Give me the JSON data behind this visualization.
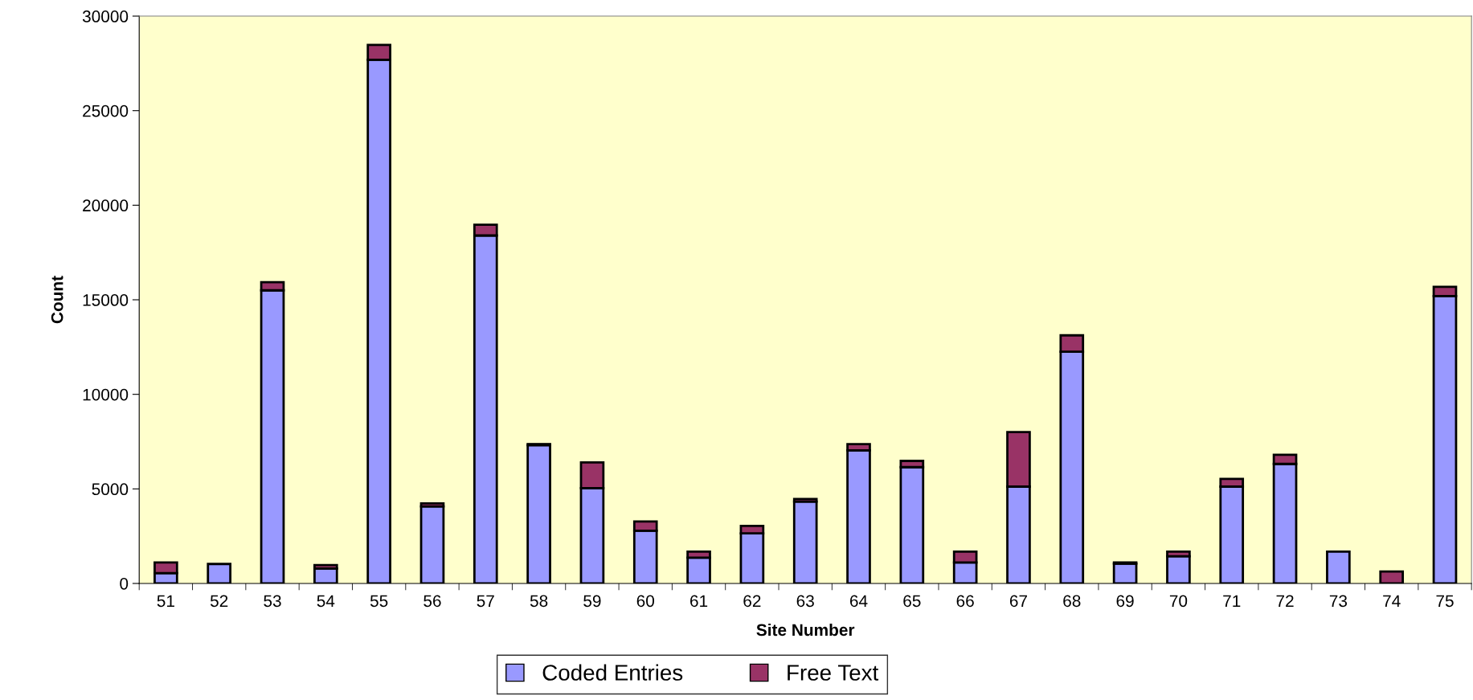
{
  "chart_data": {
    "type": "bar",
    "stacked": true,
    "xlabel": "Site Number",
    "ylabel": "Count",
    "categories": [
      "51",
      "52",
      "53",
      "54",
      "55",
      "56",
      "57",
      "58",
      "59",
      "60",
      "61",
      "62",
      "63",
      "64",
      "65",
      "66",
      "67",
      "68",
      "69",
      "70",
      "71",
      "72",
      "73",
      "74",
      "75"
    ],
    "series": [
      {
        "name": "Coded Entries",
        "color": "#9999ff",
        "values": [
          550,
          1030,
          15500,
          790,
          27690,
          4070,
          18400,
          7310,
          5040,
          2790,
          1360,
          2650,
          4330,
          7040,
          6150,
          1110,
          5120,
          12250,
          1050,
          1440,
          5120,
          6320,
          1680,
          0,
          15200
        ]
      },
      {
        "name": "Free Text",
        "color": "#993366",
        "values": [
          560,
          0,
          430,
          180,
          790,
          160,
          570,
          60,
          1360,
          490,
          320,
          390,
          140,
          330,
          330,
          570,
          2880,
          870,
          60,
          240,
          410,
          480,
          0,
          630,
          490
        ]
      }
    ],
    "ylim": [
      0,
      30000
    ],
    "yticks": [
      0,
      5000,
      10000,
      15000,
      20000,
      25000,
      30000
    ],
    "grid": false,
    "legend": "bottom"
  }
}
